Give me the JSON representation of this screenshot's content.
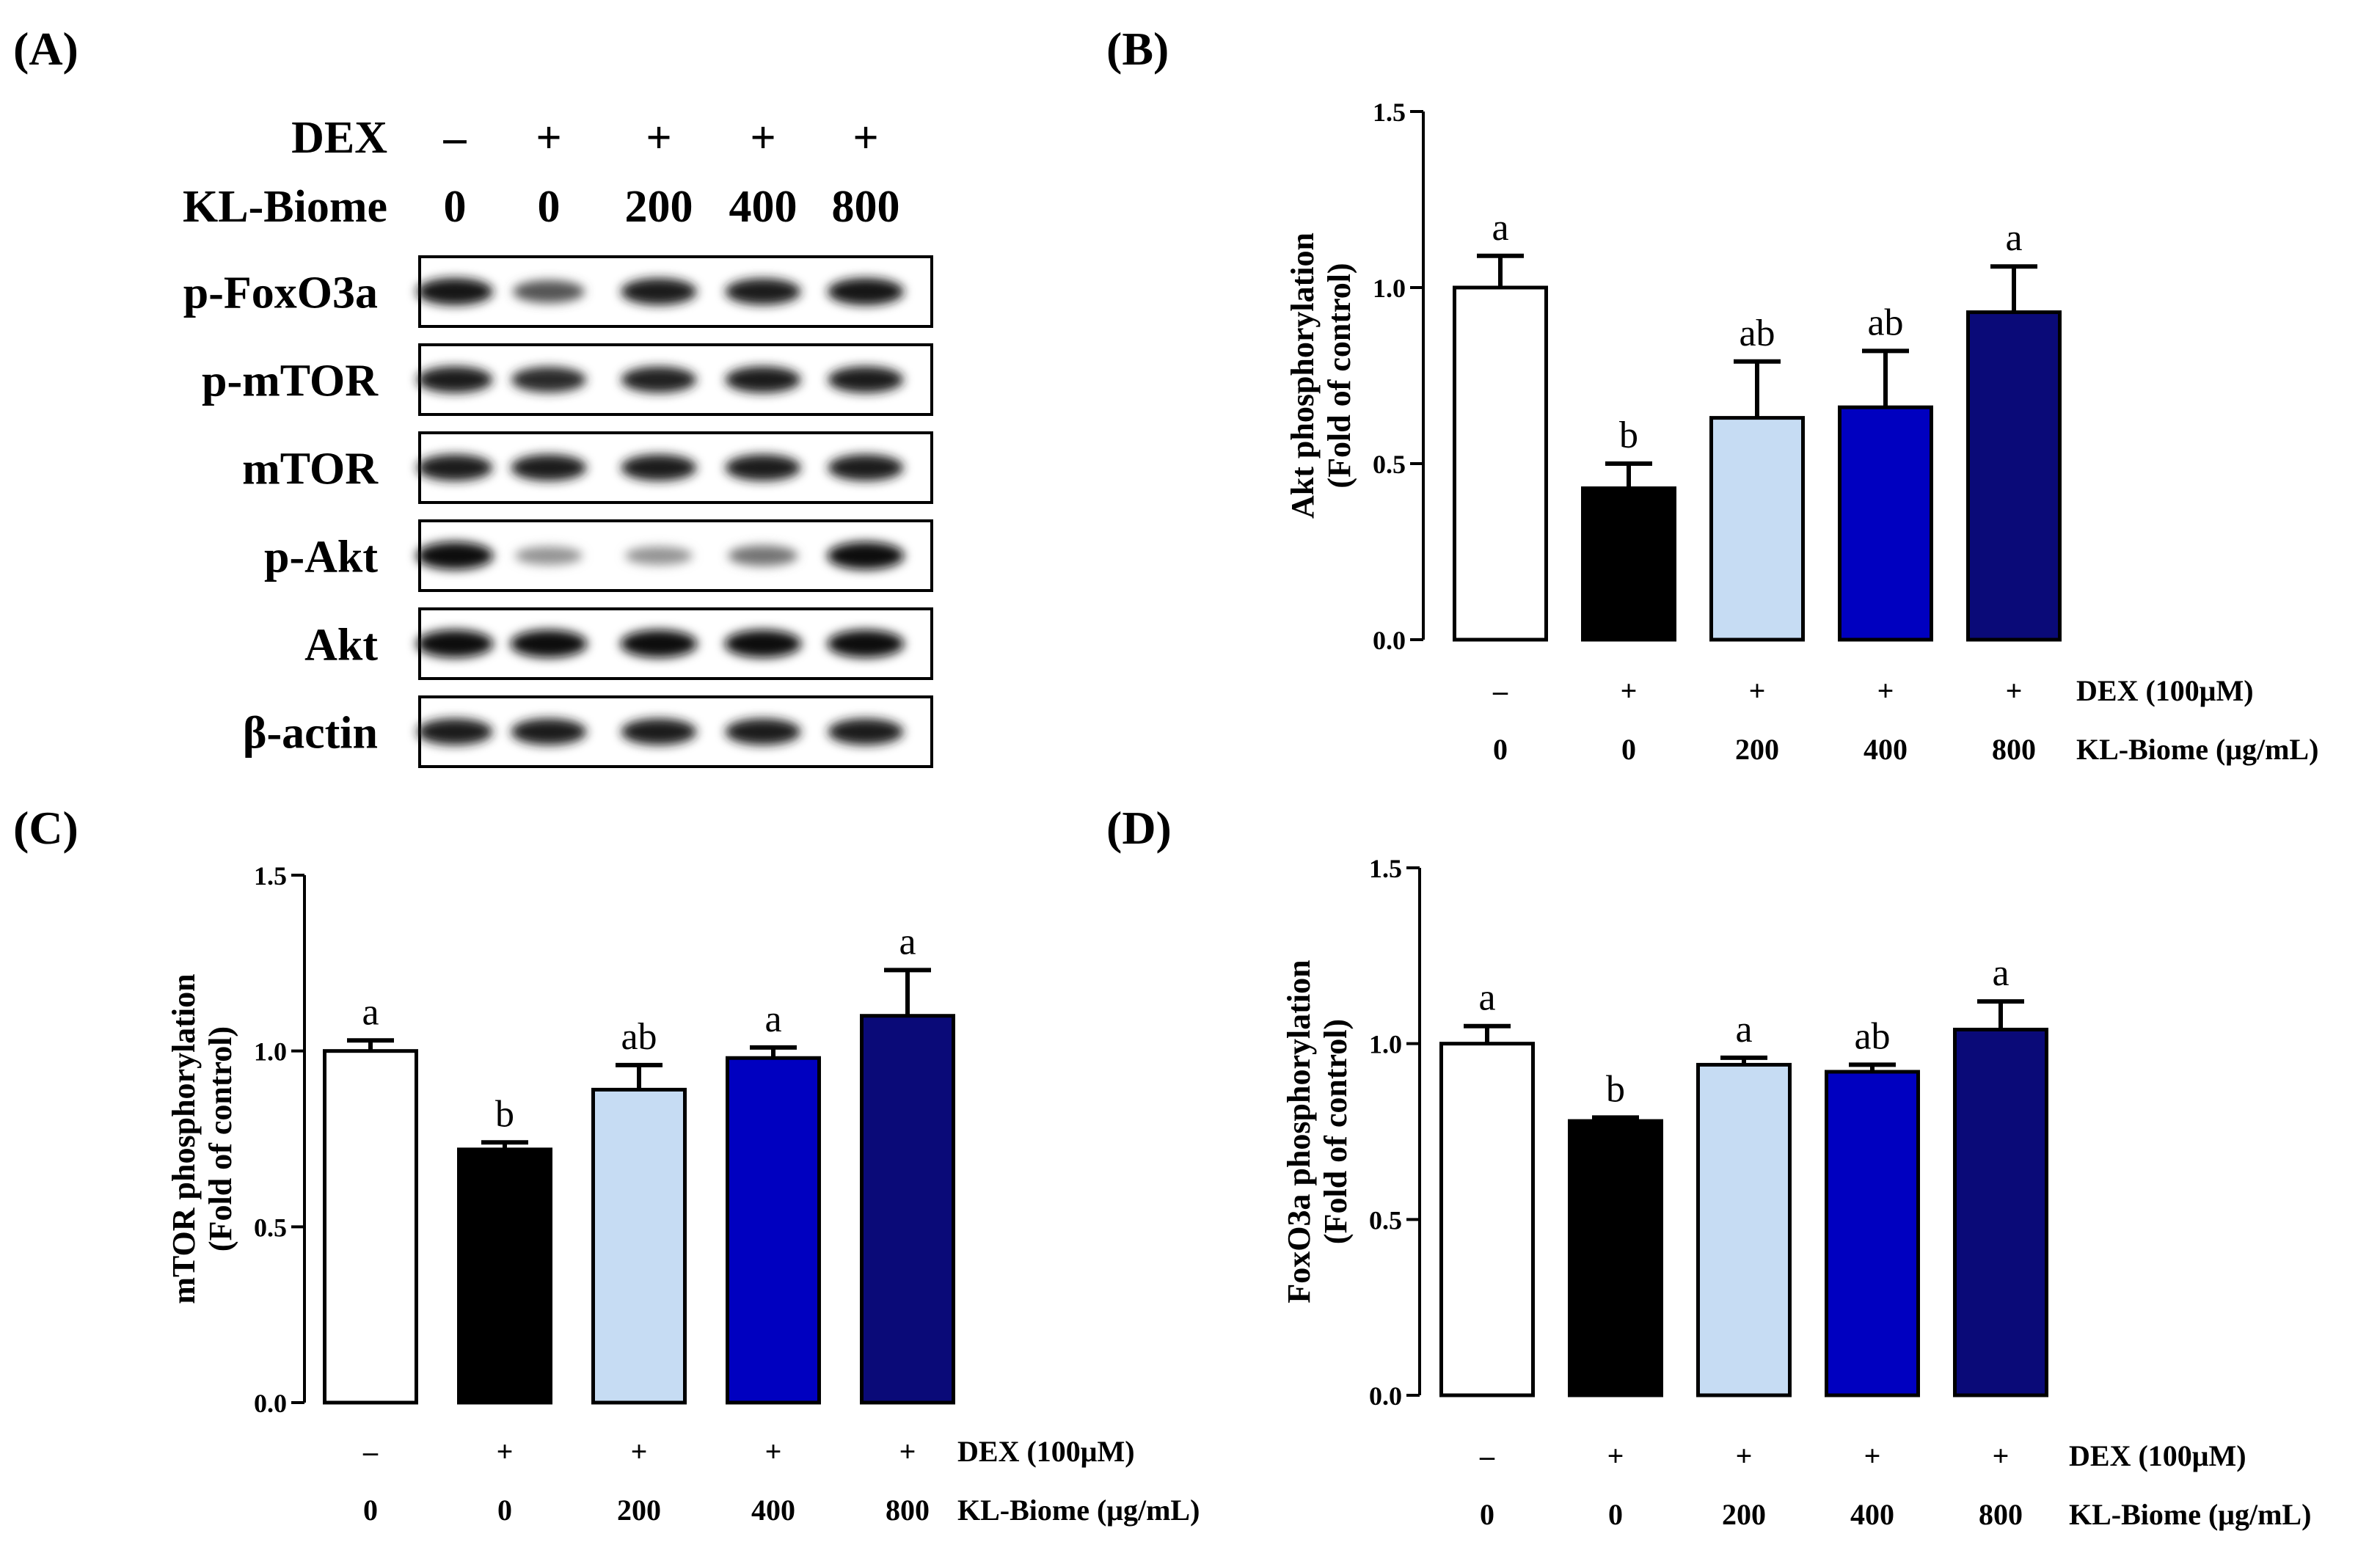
{
  "colors": {
    "bar_fills": [
      "#ffffff",
      "#000000",
      "#c6dcf3",
      "#0000c0",
      "#0a0a78"
    ],
    "axis": "#000000"
  },
  "western_blot": {
    "panel_label": "(A)",
    "dex_label": "DEX",
    "kl_label": "KL-Biome",
    "dex_marks": [
      "–",
      "+",
      "+",
      "+",
      "+"
    ],
    "kl_doses": [
      "0",
      "0",
      "200",
      "400",
      "800"
    ],
    "bands": [
      {
        "name": "p-FoxO3a",
        "intensities": [
          0.95,
          0.65,
          0.92,
          0.9,
          0.95
        ]
      },
      {
        "name": "p-mTOR",
        "intensities": [
          0.9,
          0.85,
          0.88,
          0.9,
          0.9
        ]
      },
      {
        "name": "mTOR",
        "intensities": [
          0.9,
          0.9,
          0.9,
          0.9,
          0.9
        ]
      },
      {
        "name": "p-Akt",
        "intensities": [
          1.0,
          0.35,
          0.35,
          0.5,
          1.0
        ]
      },
      {
        "name": "Akt",
        "intensities": [
          1.0,
          1.0,
          1.0,
          1.0,
          1.0
        ]
      },
      {
        "name": "β-actin",
        "intensities": [
          0.9,
          0.9,
          0.9,
          0.9,
          0.9
        ]
      }
    ]
  },
  "chart_data": [
    {
      "type": "bar",
      "panel_label": "(B)",
      "ylabel_line1": "Akt phosphorylation",
      "ylabel_line2": "(Fold of control)",
      "ylim": [
        0,
        1.5
      ],
      "yticks": [
        "0.0",
        "0.5",
        "1.0",
        "1.5"
      ],
      "ytick_values": [
        0,
        0.5,
        1.0,
        1.5
      ],
      "categories": [
        "0",
        "0",
        "200",
        "400",
        "800"
      ],
      "values": [
        1.0,
        0.43,
        0.63,
        0.66,
        0.93
      ],
      "errors": [
        0.09,
        0.07,
        0.16,
        0.16,
        0.13
      ],
      "letters": [
        "a",
        "b",
        "ab",
        "ab",
        "a"
      ],
      "dex_marks": [
        "–",
        "+",
        "+",
        "+",
        "+"
      ],
      "row1_label": "DEX (100μM)",
      "row2_label": "KL-Biome (μg/mL)"
    },
    {
      "type": "bar",
      "panel_label": "(C)",
      "ylabel_line1": "mTOR phosphorylation",
      "ylabel_line2": "(Fold of control)",
      "ylim": [
        0,
        1.5
      ],
      "yticks": [
        "0.0",
        "0.5",
        "1.0",
        "1.5"
      ],
      "ytick_values": [
        0,
        0.5,
        1.0,
        1.5
      ],
      "categories": [
        "0",
        "0",
        "200",
        "400",
        "800"
      ],
      "values": [
        1.0,
        0.72,
        0.89,
        0.98,
        1.1
      ],
      "errors": [
        0.03,
        0.02,
        0.07,
        0.03,
        0.13
      ],
      "letters": [
        "a",
        "b",
        "ab",
        "a",
        "a"
      ],
      "dex_marks": [
        "–",
        "+",
        "+",
        "+",
        "+"
      ],
      "row1_label": "DEX (100μM)",
      "row2_label": "KL-Biome (μg/mL)"
    },
    {
      "type": "bar",
      "panel_label": "(D)",
      "ylabel_line1": "FoxO3a phosphorylation",
      "ylabel_line2": "(Fold of control)",
      "ylim": [
        0,
        1.5
      ],
      "yticks": [
        "0.0",
        "0.5",
        "1.0",
        "1.5"
      ],
      "ytick_values": [
        0,
        0.5,
        1.0,
        1.5
      ],
      "categories": [
        "0",
        "0",
        "200",
        "400",
        "800"
      ],
      "values": [
        1.0,
        0.78,
        0.94,
        0.92,
        1.04
      ],
      "errors": [
        0.05,
        0.01,
        0.02,
        0.02,
        0.08
      ],
      "letters": [
        "a",
        "b",
        "a",
        "ab",
        "a"
      ],
      "dex_marks": [
        "–",
        "+",
        "+",
        "+",
        "+"
      ],
      "row1_label": "DEX (100μM)",
      "row2_label": "KL-Biome (μg/mL)"
    }
  ]
}
